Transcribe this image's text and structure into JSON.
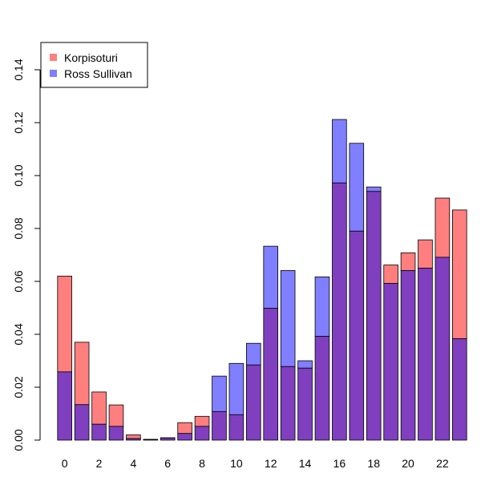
{
  "chart_data": {
    "type": "bar",
    "categories": [
      "0",
      "1",
      "2",
      "3",
      "4",
      "5",
      "6",
      "7",
      "8",
      "9",
      "10",
      "11",
      "12",
      "13",
      "14",
      "15",
      "16",
      "17",
      "18",
      "19",
      "20",
      "21",
      "22",
      "23"
    ],
    "x_tick_labels": [
      "0",
      "2",
      "4",
      "6",
      "8",
      "10",
      "12",
      "14",
      "16",
      "18",
      "20",
      "22"
    ],
    "y_tick_labels": [
      "0.00",
      "0.02",
      "0.04",
      "0.06",
      "0.08",
      "0.10",
      "0.12",
      "0.14"
    ],
    "y_ticks": [
      0,
      0.02,
      0.04,
      0.06,
      0.08,
      0.1,
      0.12,
      0.14
    ],
    "ylim": [
      0,
      0.15
    ],
    "grid": false,
    "legend_position": "top-left",
    "overlay": true,
    "series": [
      {
        "name": "Korpisoturi",
        "color": "#ff7f7f",
        "values": [
          0.062,
          0.037,
          0.0182,
          0.0133,
          0.002,
          0.0002,
          0.0009,
          0.0066,
          0.009,
          0.0108,
          0.0096,
          0.0284,
          0.0498,
          0.0278,
          0.0272,
          0.0392,
          0.0972,
          0.079,
          0.094,
          0.0662,
          0.0708,
          0.0757,
          0.0915,
          0.087
        ]
      },
      {
        "name": "Ross Sullivan",
        "color": "#7f7fff",
        "values": [
          0.0258,
          0.0134,
          0.006,
          0.0052,
          0.0006,
          0.0003,
          0.0008,
          0.0025,
          0.0052,
          0.0242,
          0.029,
          0.0366,
          0.0733,
          0.0641,
          0.03,
          0.0617,
          0.1212,
          0.1122,
          0.0957,
          0.0592,
          0.0641,
          0.065,
          0.0691,
          0.0383
        ]
      }
    ],
    "overlap_color": "#7f3fbf"
  }
}
